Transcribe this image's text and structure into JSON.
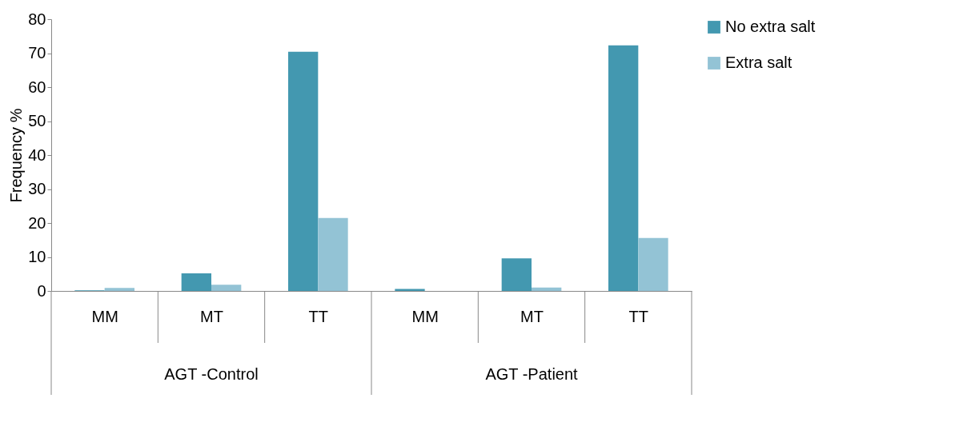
{
  "chart_data": {
    "type": "bar",
    "ylabel": "Frequency %",
    "categories": [
      "MM",
      "MT",
      "TT",
      "MM",
      "MT",
      "TT"
    ],
    "annotations": [
      "AGT -Control",
      "AGT -Patient"
    ],
    "series": [
      {
        "name": "No extra salt",
        "color": "#4398b0",
        "values": [
          0.2,
          5.2,
          70.4,
          0.6,
          9.6,
          72.3
        ]
      },
      {
        "name": "Extra salt",
        "color": "#93c3d5",
        "values": [
          0.9,
          1.8,
          21.5,
          0,
          1.0,
          15.6
        ]
      }
    ],
    "ylim": [
      0,
      80
    ],
    "yticks": [
      0,
      10,
      20,
      30,
      40,
      50,
      60,
      70,
      80
    ],
    "grid": false,
    "legend": "right"
  }
}
